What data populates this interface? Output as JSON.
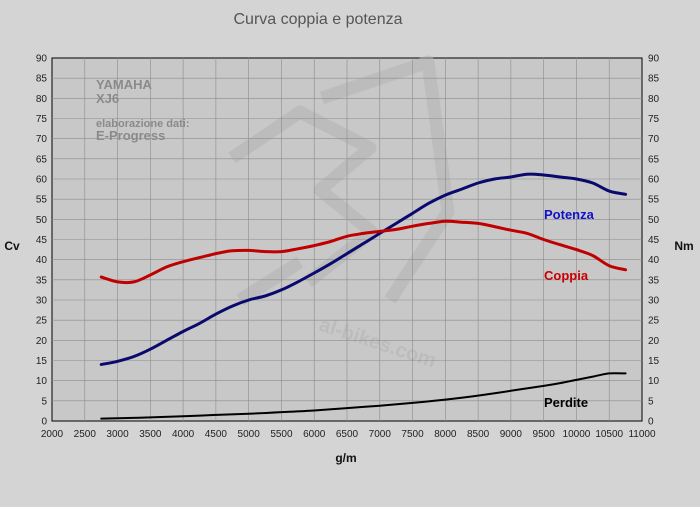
{
  "chart_data": {
    "type": "line",
    "title": "Curva coppia e potenza",
    "xlabel": "g/m",
    "ylabel_left": "Cv",
    "ylabel_right": "Nm",
    "xlim": [
      2000,
      11000
    ],
    "ylim": [
      0,
      90
    ],
    "x_ticks": [
      2000,
      2500,
      3000,
      3500,
      4000,
      4500,
      5000,
      5500,
      6000,
      6500,
      7000,
      7500,
      8000,
      8500,
      9000,
      9500,
      10000,
      10500,
      11000
    ],
    "y_ticks": [
      0,
      5,
      10,
      15,
      20,
      25,
      30,
      35,
      40,
      45,
      50,
      55,
      60,
      65,
      70,
      75,
      80,
      85,
      90
    ],
    "grid": true,
    "annotations": {
      "model_brand": "YAMAHA",
      "model_name": "XJ6",
      "source_label": "elaborazione dati:",
      "source_name": "E-Progress"
    },
    "series": [
      {
        "name": "Potenza",
        "color": "#0a0a6e",
        "label_color": "#1010cc",
        "x": [
          2750,
          3000,
          3250,
          3500,
          3750,
          4000,
          4250,
          4500,
          4750,
          5000,
          5250,
          5500,
          5750,
          6000,
          6250,
          6500,
          6750,
          7000,
          7250,
          7500,
          7750,
          8000,
          8250,
          8500,
          8750,
          9000,
          9250,
          9500,
          9750,
          10000,
          10250,
          10500,
          10750
        ],
        "values": [
          14,
          14.8,
          16,
          17.8,
          20,
          22.2,
          24.2,
          26.5,
          28.5,
          30,
          31,
          32.5,
          34.5,
          36.7,
          39,
          41.5,
          44,
          46.5,
          49,
          51.5,
          54,
          56,
          57.5,
          59,
          60,
          60.5,
          61.2,
          61,
          60.5,
          60,
          59,
          57,
          56.2
        ]
      },
      {
        "name": "Coppia",
        "color": "#c00000",
        "label_color": "#cc0000",
        "x": [
          2750,
          3000,
          3250,
          3500,
          3750,
          4000,
          4250,
          4500,
          4750,
          5000,
          5250,
          5500,
          5750,
          6000,
          6250,
          6500,
          6750,
          7000,
          7250,
          7500,
          7750,
          8000,
          8250,
          8500,
          8750,
          9000,
          9250,
          9500,
          9750,
          10000,
          10250,
          10500,
          10750
        ],
        "values": [
          35.7,
          34.5,
          34.5,
          36.2,
          38.2,
          39.5,
          40.5,
          41.5,
          42.2,
          42.3,
          42,
          42,
          42.7,
          43.5,
          44.5,
          45.8,
          46.5,
          47,
          47.5,
          48.3,
          49,
          49.5,
          49.3,
          49,
          48.2,
          47.3,
          46.5,
          45,
          43.7,
          42.5,
          41,
          38.5,
          37.5
        ]
      },
      {
        "name": "Perdite",
        "color": "#000000",
        "label_color": "#000000",
        "x": [
          2750,
          3000,
          3500,
          4000,
          4500,
          5000,
          5500,
          6000,
          6500,
          7000,
          7500,
          8000,
          8500,
          9000,
          9500,
          9750,
          10000,
          10250,
          10500,
          10750
        ],
        "values": [
          0.6,
          0.7,
          0.9,
          1.2,
          1.5,
          1.8,
          2.2,
          2.6,
          3.2,
          3.8,
          4.5,
          5.3,
          6.3,
          7.5,
          8.7,
          9.4,
          10.2,
          11,
          11.8,
          11.8
        ]
      }
    ]
  }
}
